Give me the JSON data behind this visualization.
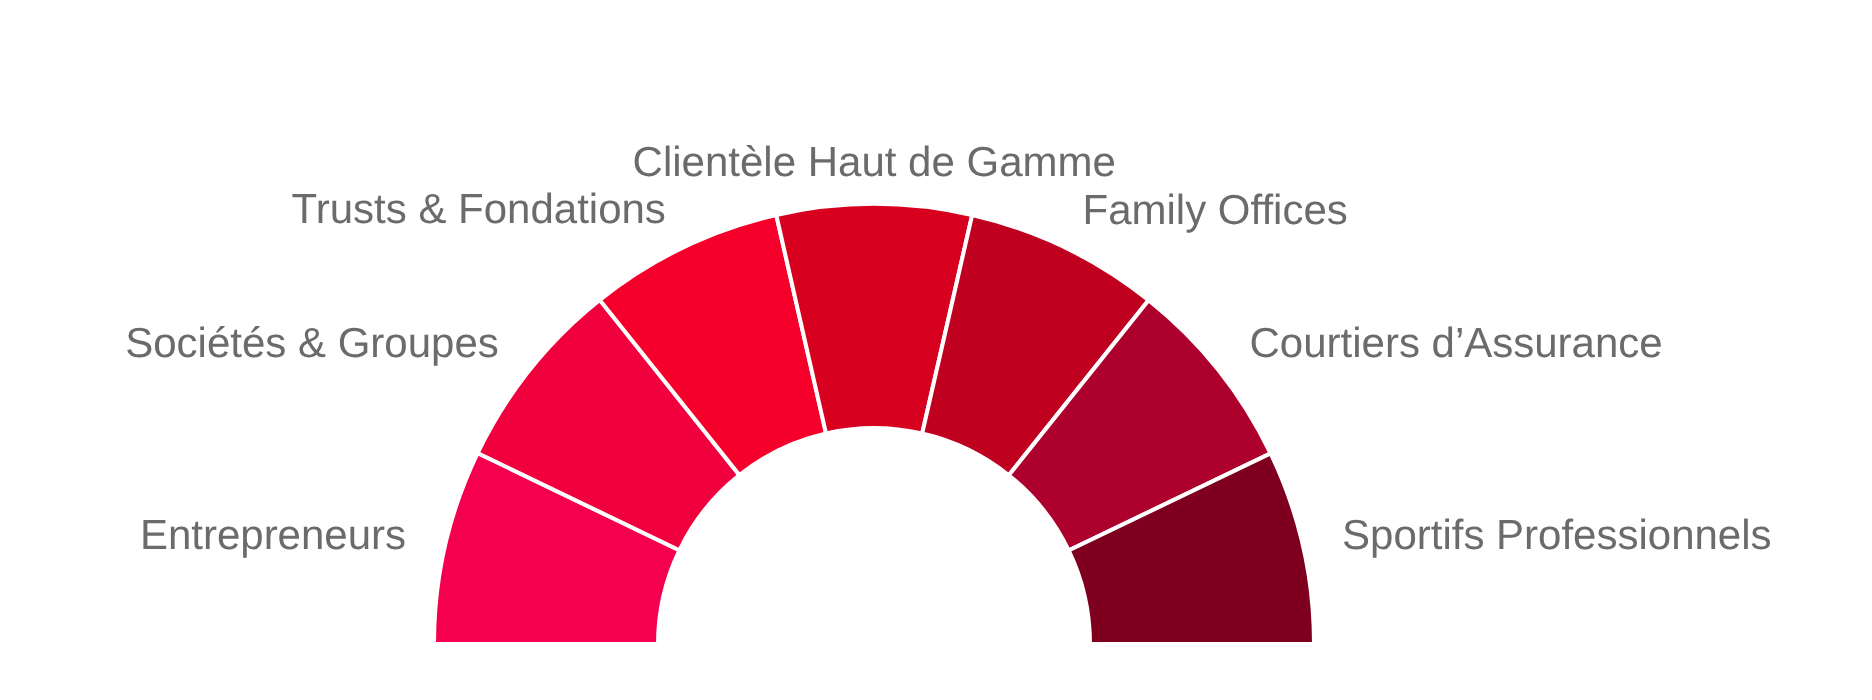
{
  "chart_data": {
    "type": "donut",
    "categories": [
      "Entrepreneurs",
      "Sociétés & Groupes",
      "Trusts & Fondations",
      "Clientèle Haut de Gamme",
      "Family Offices",
      "Courtiers d’Assurance",
      "Sportifs Professionnels"
    ],
    "values": [
      14.29,
      14.29,
      14.29,
      14.29,
      14.29,
      14.29,
      14.26
    ],
    "colors": [
      "#f5004f",
      "#f0003c",
      "#f5002a",
      "#d8001f",
      "#bf001e",
      "#ad002c",
      "#7f001e"
    ]
  }
}
